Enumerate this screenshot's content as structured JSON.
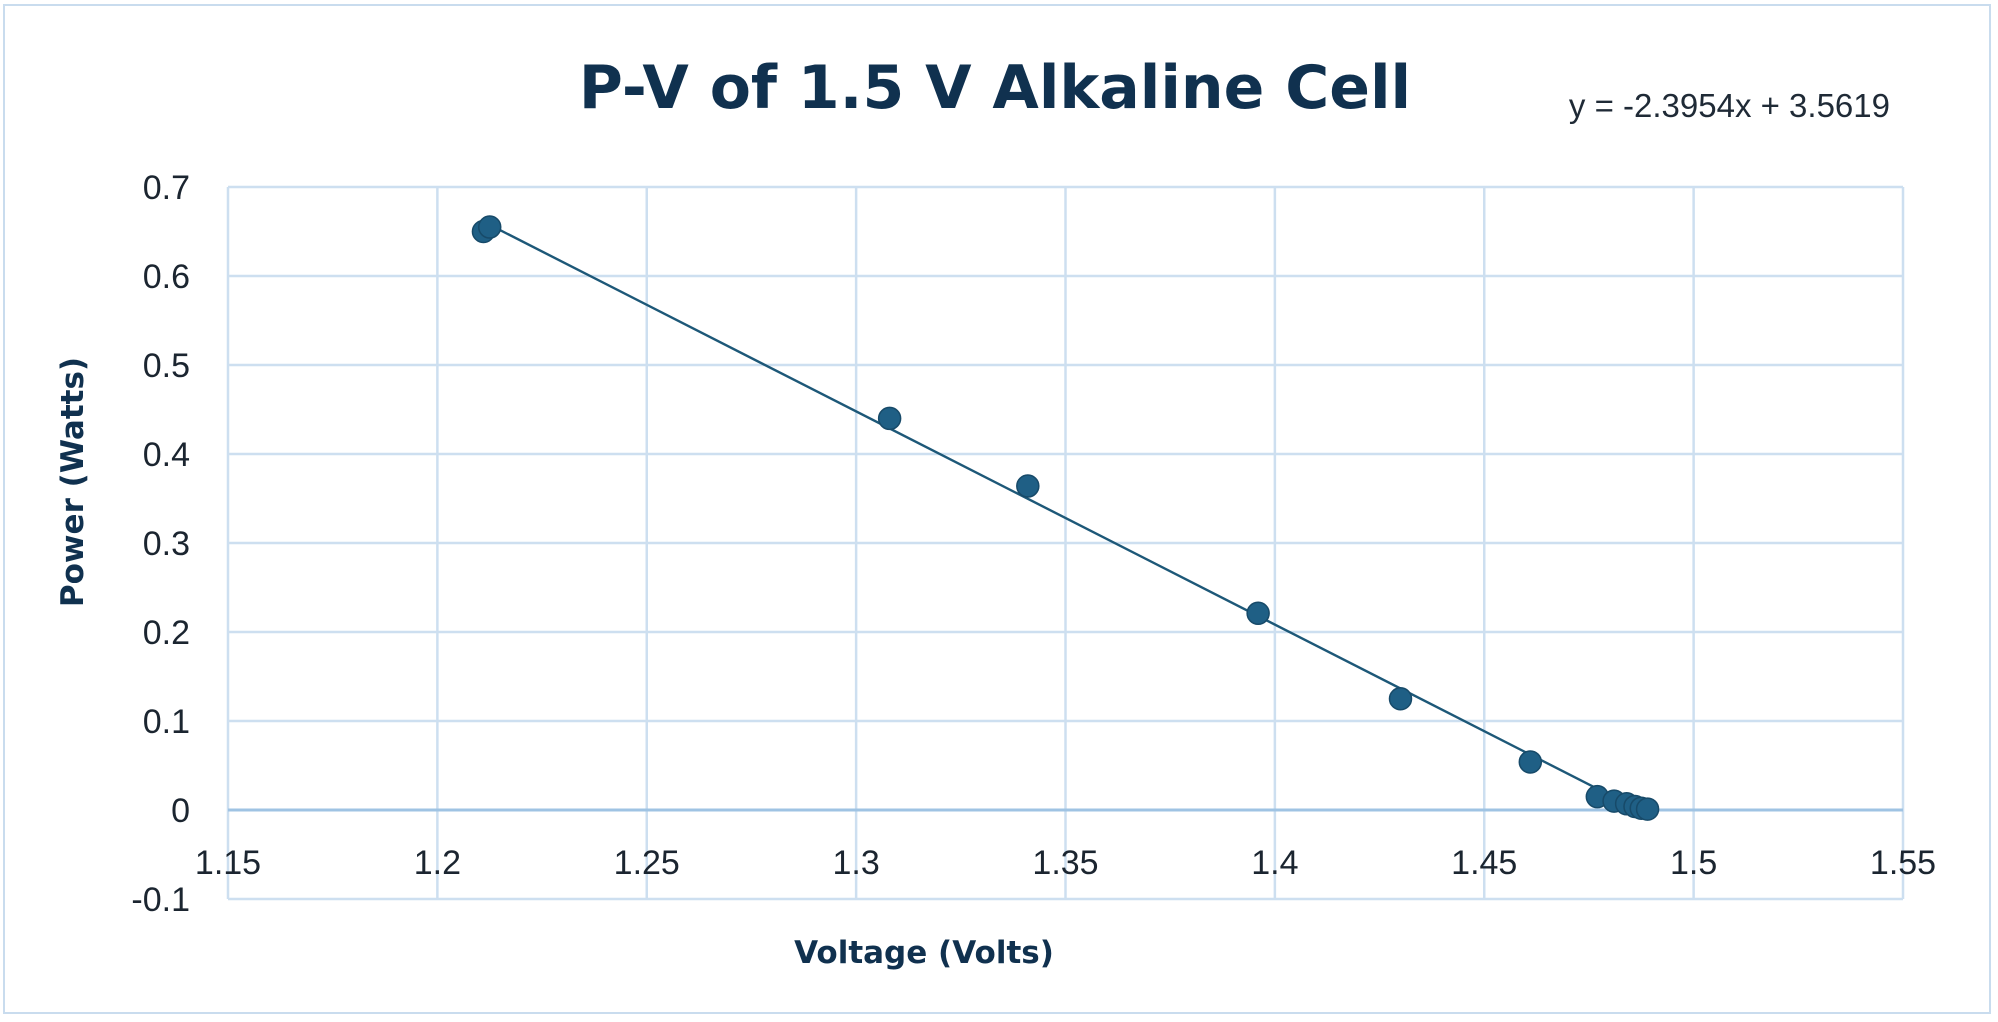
{
  "chart_data": {
    "type": "scatter",
    "title": "P-V of 1.5 V Alkaline Cell",
    "xlabel": "Voltage (Volts)",
    "ylabel": "Power (Watts)",
    "xlim": [
      1.15,
      1.55
    ],
    "ylim": [
      -0.1,
      0.7
    ],
    "xticks": [
      1.15,
      1.2,
      1.25,
      1.3,
      1.35,
      1.4,
      1.45,
      1.5,
      1.55
    ],
    "yticks": [
      -0.1,
      0,
      0.1,
      0.2,
      0.3,
      0.4,
      0.5,
      0.6,
      0.7
    ],
    "xtick_labels": [
      "1.15",
      "1.2",
      "1.25",
      "1.3",
      "1.35",
      "1.4",
      "1.45",
      "1.5",
      "1.55"
    ],
    "ytick_labels": [
      "-0.1",
      "0",
      "0.1",
      "0.2",
      "0.3",
      "0.4",
      "0.5",
      "0.6",
      "0.7"
    ],
    "grid": true,
    "legend": "none",
    "series": [
      {
        "x": [
          1.211,
          1.2125,
          1.308,
          1.341,
          1.396,
          1.43,
          1.461,
          1.477,
          1.481,
          1.484,
          1.486,
          1.4875,
          1.489
        ],
        "y": [
          0.65,
          0.655,
          0.44,
          0.364,
          0.221,
          0.125,
          0.054,
          0.015,
          0.01,
          0.007,
          0.004,
          0.002,
          0.001
        ],
        "color": "#1f5f85"
      }
    ],
    "trendline": {
      "type": "linear",
      "slope": -2.3954,
      "intercept": 3.5619,
      "x_range": [
        1.2125,
        1.4775
      ],
      "equation": "y = -2.3954x + 3.5619",
      "color": "#1d5878"
    }
  }
}
